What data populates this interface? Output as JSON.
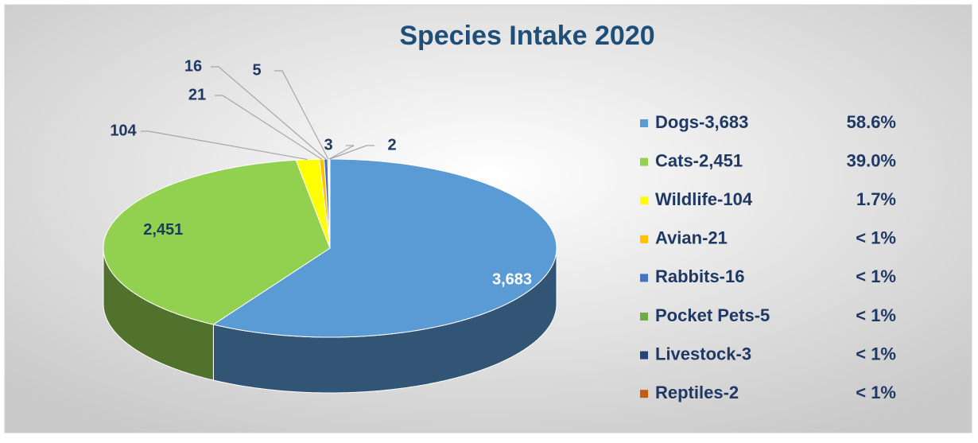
{
  "chart_data": {
    "type": "pie",
    "title": "Species Intake 2020",
    "categories": [
      "Dogs-3,683",
      "Cats-2,451",
      "Wildlife-104",
      "Avian-21",
      "Rabbits-16",
      "Pocket Pets-5",
      "Livestock-3",
      "Reptiles-2"
    ],
    "values": [
      3683,
      2451,
      104,
      21,
      16,
      5,
      3,
      2
    ],
    "value_labels": [
      "3,683",
      "2,451",
      "104",
      "21",
      "16",
      "5",
      "3",
      "2"
    ],
    "percent_labels": [
      "58.6%",
      "39.0%",
      "1.7%",
      "< 1%",
      "< 1%",
      "< 1%",
      "< 1%",
      "< 1%"
    ],
    "colors": [
      "#5b9bd5",
      "#92d050",
      "#ffff00",
      "#ffc000",
      "#4472c4",
      "#70ad47",
      "#264478",
      "#c55a11"
    ],
    "legend": "right"
  }
}
